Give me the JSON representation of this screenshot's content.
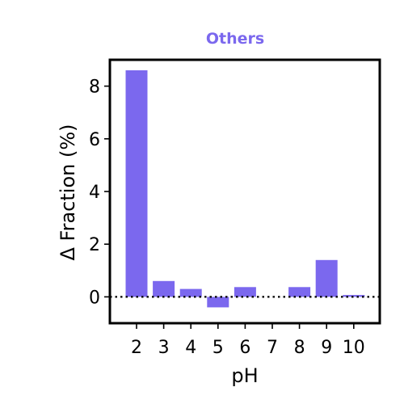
{
  "chart_data": {
    "type": "bar",
    "title": "Others",
    "xlabel": "pH",
    "ylabel": "Δ Fraction (%)",
    "categories": [
      "2",
      "3",
      "4",
      "5",
      "6",
      "7",
      "8",
      "9",
      "10"
    ],
    "values": [
      8.6,
      0.6,
      0.3,
      -0.4,
      0.37,
      0.0,
      0.37,
      1.4,
      0.07
    ],
    "ylim": [
      -1.0,
      9.0
    ],
    "yticks": [
      0,
      2,
      4,
      6,
      8
    ],
    "reference_line": {
      "y": 0,
      "style": "dotted"
    },
    "grid": false,
    "legend": "none"
  },
  "colors": {
    "bar": "#7b68ee",
    "title": "#7b68ee",
    "axis": "#000000"
  }
}
